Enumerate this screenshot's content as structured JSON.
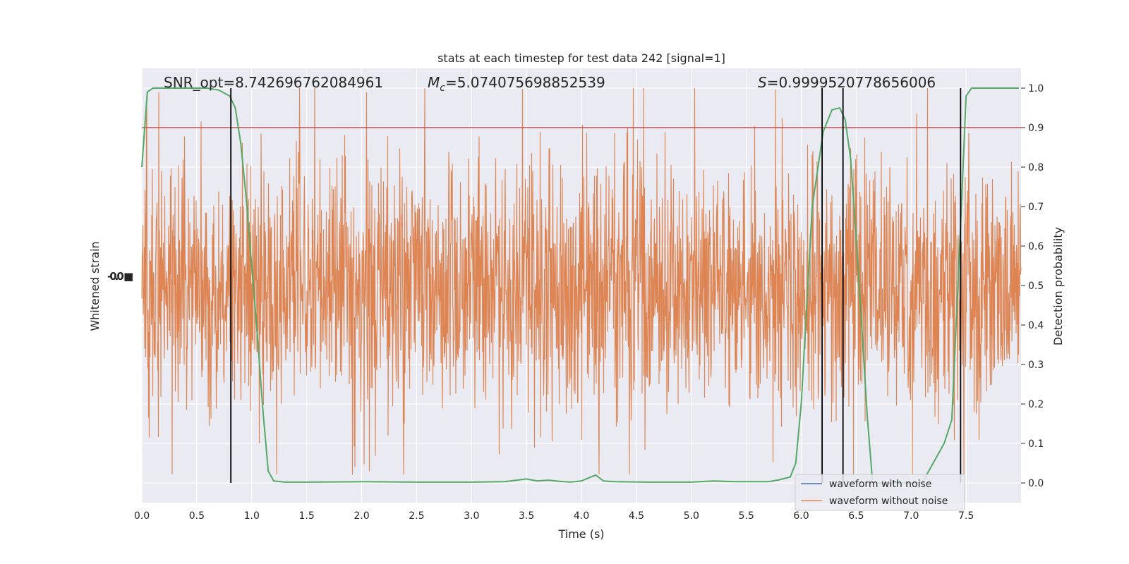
{
  "chart_data": {
    "type": "line",
    "title": "stats at each timestep for test data 242 [signal=1]",
    "xlabel": "Time (s)",
    "ylabel_left": "Whitened strain",
    "ylabel_right": "Detection probability",
    "xlim": [
      0.0,
      8.0
    ],
    "ylim_right": [
      -0.05,
      1.05
    ],
    "x_ticks": [
      "0.0",
      "0.5",
      "1.0",
      "1.5",
      "2.0",
      "2.5",
      "3.0",
      "3.5",
      "4.0",
      "4.5",
      "5.0",
      "5.5",
      "6.0",
      "6.5",
      "7.0",
      "7.5"
    ],
    "y_ticks_right": [
      "0.0",
      "0.1",
      "0.2",
      "0.3",
      "0.4",
      "0.5",
      "0.6",
      "0.7",
      "0.8",
      "0.9",
      "1.0"
    ],
    "grid": true,
    "legend_position": "bottom-right",
    "annotations": {
      "snr": "SNR_opt=8.742696762084961",
      "mc_symbol": "M",
      "mc_sub": "c",
      "mc_value": "=5.074075698852539",
      "s_symbol": "S",
      "s_value": "=0.9999520778656006"
    },
    "threshold": 0.9,
    "vertical_lines_x": [
      0.81,
      6.19,
      6.38,
      7.45
    ],
    "series": [
      {
        "name": "waveform with noise",
        "color": "#4c72b0",
        "x": [
          0.0,
          8.0
        ],
        "y": [
          0.0,
          0.0
        ]
      },
      {
        "name": "waveform without noise",
        "color": "#dd8452",
        "x": [
          0.0,
          8.0
        ],
        "y": [
          0.0,
          0.0
        ]
      },
      {
        "name": "",
        "color": "#55a868",
        "x": [
          0.0,
          0.05,
          0.1,
          0.2,
          0.3,
          0.4,
          0.5,
          0.6,
          0.7,
          0.8,
          0.85,
          0.9,
          0.95,
          1.0,
          1.05,
          1.1,
          1.15,
          1.2,
          1.3,
          1.5,
          2.0,
          2.5,
          3.0,
          3.3,
          3.5,
          3.6,
          3.7,
          3.8,
          3.9,
          4.0,
          4.13,
          4.2,
          4.3,
          4.6,
          5.0,
          5.2,
          5.4,
          5.7,
          5.8,
          5.9,
          5.95,
          6.0,
          6.1,
          6.2,
          6.28,
          6.35,
          6.4,
          6.45,
          6.5,
          6.55,
          6.6,
          6.65,
          7.1,
          7.2,
          7.3,
          7.37,
          7.45,
          7.5,
          7.55,
          7.6,
          7.8,
          7.98
        ],
        "y": [
          0.8,
          0.99,
          1.0,
          1.0,
          1.0,
          1.0,
          1.0,
          1.0,
          0.995,
          0.98,
          0.95,
          0.86,
          0.72,
          0.55,
          0.38,
          0.19,
          0.03,
          0.005,
          0.002,
          0.002,
          0.003,
          0.002,
          0.002,
          0.003,
          0.01,
          0.005,
          0.007,
          0.004,
          0.002,
          0.005,
          0.02,
          0.005,
          0.003,
          0.002,
          0.002,
          0.005,
          0.003,
          0.003,
          0.008,
          0.015,
          0.05,
          0.2,
          0.7,
          0.89,
          0.945,
          0.95,
          0.92,
          0.82,
          0.62,
          0.4,
          0.17,
          0.0,
          0.0,
          0.05,
          0.1,
          0.16,
          0.65,
          0.98,
          1.0,
          1.0,
          1.0,
          1.0
        ]
      }
    ]
  }
}
